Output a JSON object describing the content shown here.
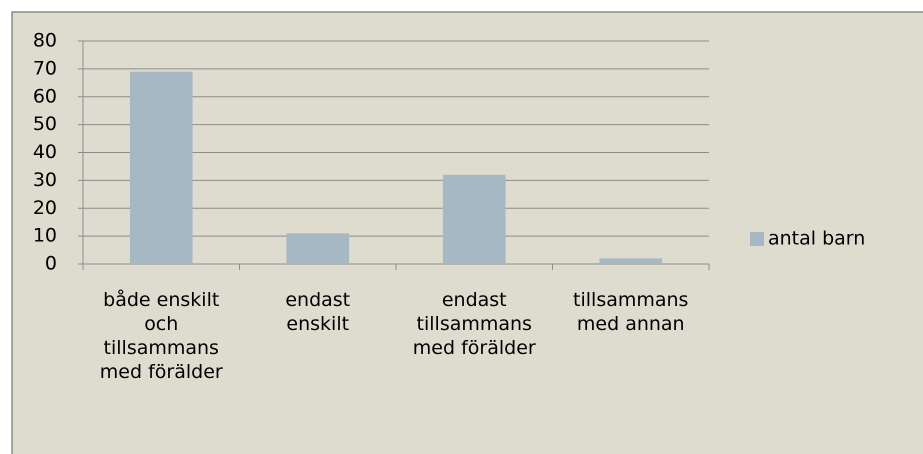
{
  "chart_data": {
    "type": "bar",
    "categories": [
      "både enskilt och tillsammans med förälder",
      "endast enskilt",
      "endast tillsammans med förälder",
      "tillsammans med annan"
    ],
    "series": [
      {
        "name": "antal barn",
        "color": "#a5b8c3",
        "values": [
          69,
          11,
          32,
          2
        ]
      }
    ],
    "ylim": [
      0,
      80
    ],
    "yticks": [
      0,
      10,
      20,
      30,
      40,
      50,
      60,
      70,
      80
    ],
    "grid": true,
    "legend": "right"
  }
}
